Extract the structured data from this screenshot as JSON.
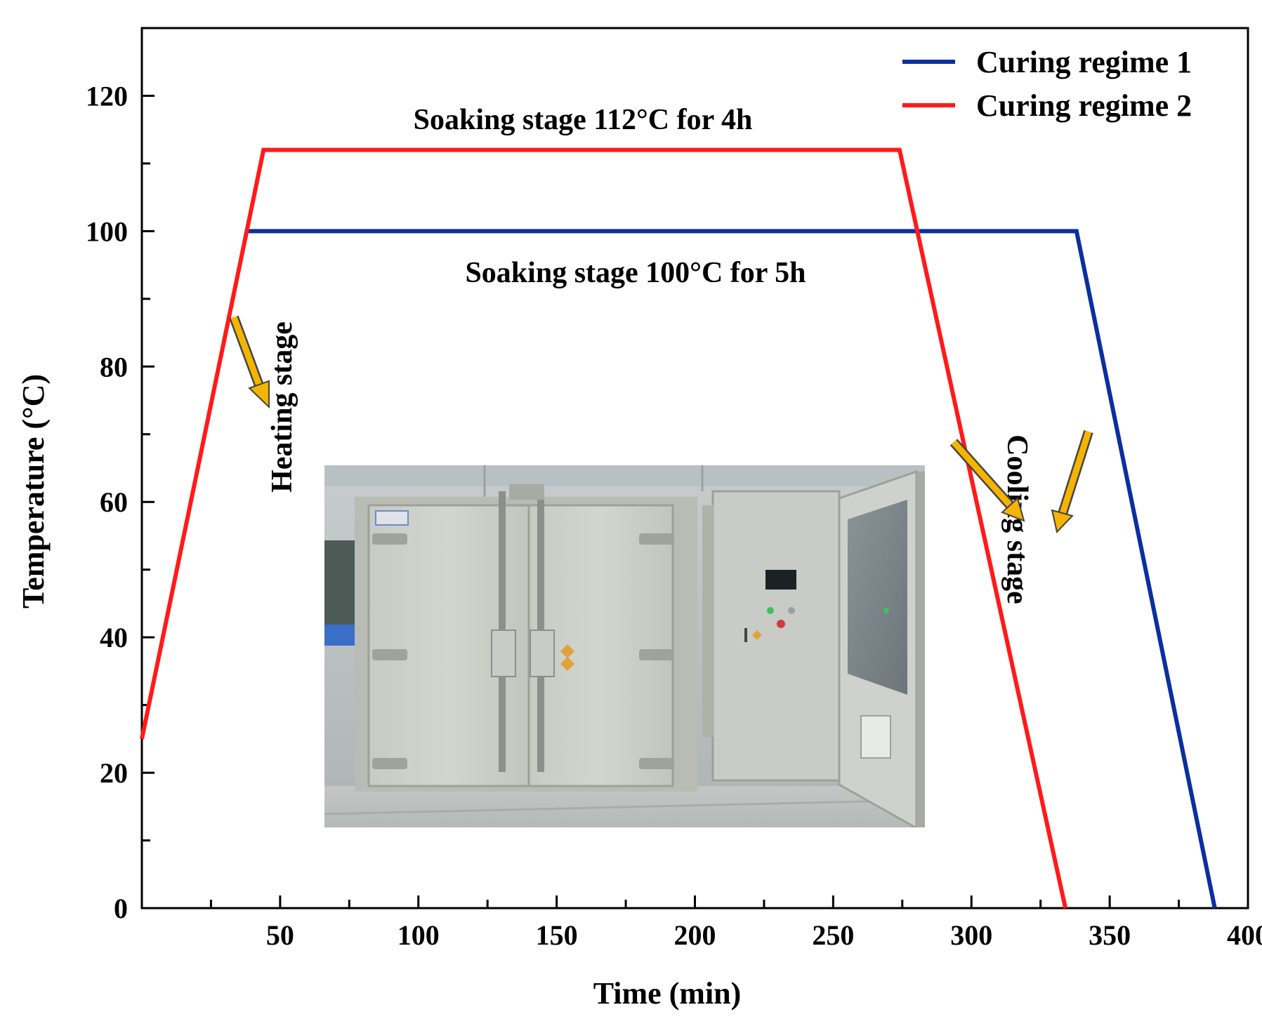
{
  "chart_data": {
    "type": "line",
    "xlabel": "Time (min)",
    "ylabel": "Temperature (°C)",
    "xlim": [
      0,
      400
    ],
    "ylim": [
      0,
      130
    ],
    "x_ticks": [
      50,
      100,
      150,
      200,
      250,
      300,
      350,
      400
    ],
    "y_ticks": [
      0,
      20,
      40,
      60,
      80,
      100,
      120
    ],
    "grid": false,
    "legend_position": "top-right",
    "series": [
      {
        "name": "Curing regime 1",
        "color": "#0a2fa0",
        "x": [
          38,
          338,
          388
        ],
        "y": [
          100,
          100,
          0
        ]
      },
      {
        "name": "Curing regime 2",
        "color": "#ff1a1a",
        "x": [
          0,
          44,
          274,
          334
        ],
        "y": [
          25,
          112,
          112,
          0
        ]
      }
    ],
    "annotations": {
      "soak_regime2": "Soaking stage 112°C for 4h",
      "soak_regime1": "Soaking stage 100°C for 5h",
      "heating": "Heating stage",
      "cooling": "Cooling stage"
    },
    "arrow_color": "#f5b400",
    "inset_image": "industrial curing oven photo"
  }
}
